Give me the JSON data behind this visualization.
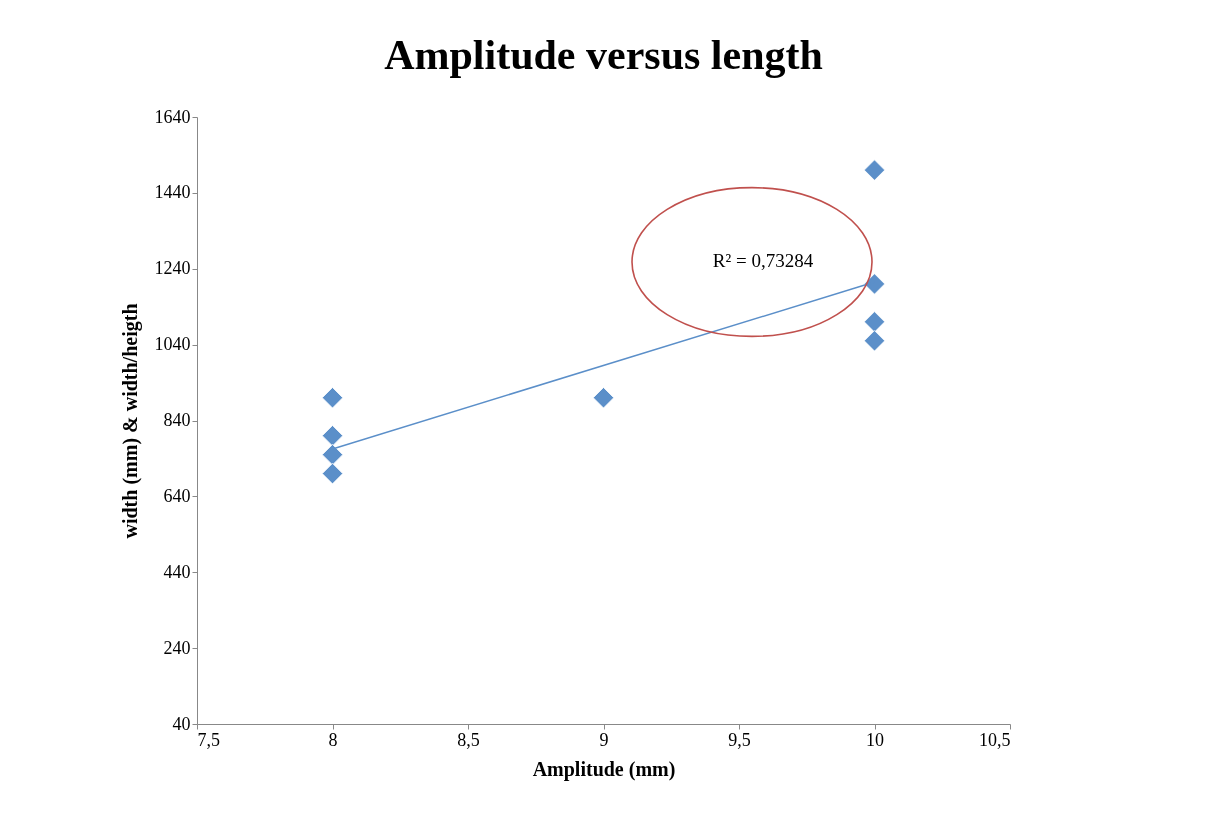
{
  "chart_data": {
    "type": "scatter",
    "title": "Amplitude versus length",
    "xlabel": "Amplitude (mm)",
    "ylabel": "width (mm) & width/heigth",
    "series": [
      {
        "color": "#5b8fc9",
        "marker": "diamond",
        "x": [
          8,
          8,
          8,
          8,
          9,
          10,
          10,
          10,
          10
        ],
        "values": [
          900,
          800,
          750,
          700,
          900,
          1500,
          1200,
          1100,
          1050
        ]
      },
      {
        "type": "line",
        "color": "#5b8fc9",
        "marker": "none",
        "x": [
          8,
          10
        ],
        "values": [
          765,
          1205
        ]
      }
    ],
    "annotations": [
      "R² = 0,73284"
    ],
    "xlim": [
      7.5,
      10.5
    ],
    "xticks": [
      {
        "value": 7.5,
        "label": "7,5"
      },
      8,
      {
        "value": 8.5,
        "label": "8,5"
      },
      9,
      {
        "value": 9.5,
        "label": "9,5"
      },
      10,
      {
        "value": 10.5,
        "label": "10,5"
      }
    ],
    "ylim": [
      40,
      1640
    ],
    "yticks": [
      40,
      240,
      440,
      640,
      840,
      1040,
      1240,
      1440,
      1640
    ],
    "grid": false
  }
}
